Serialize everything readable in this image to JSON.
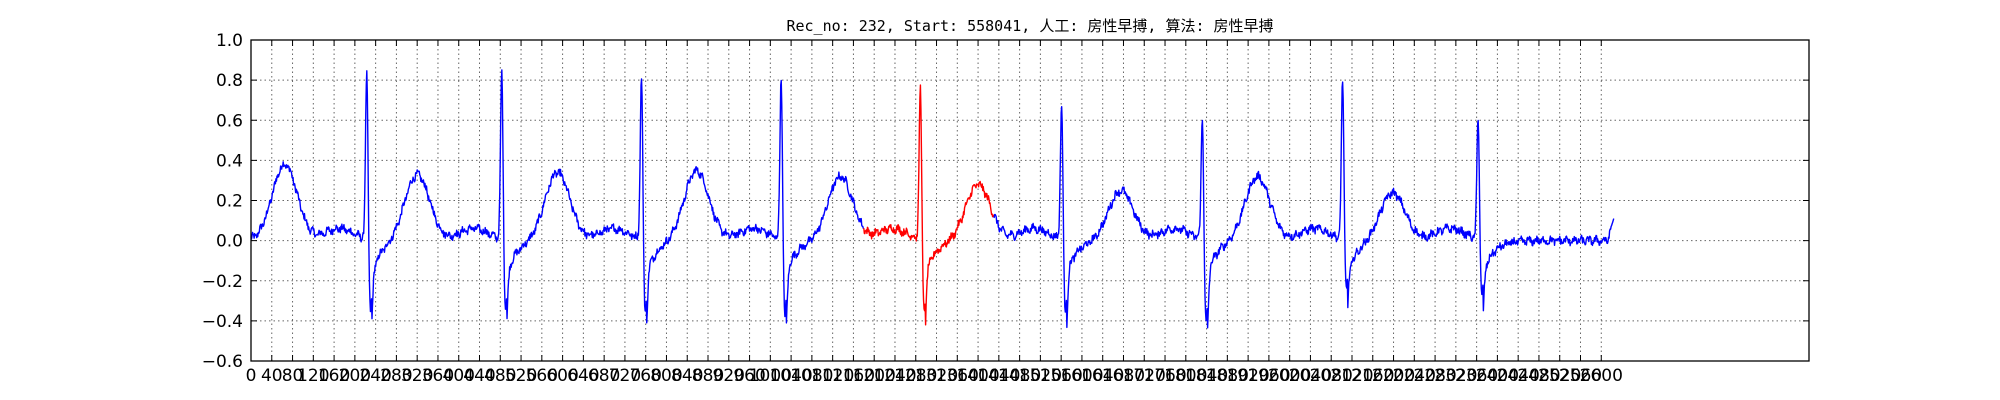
{
  "chart_data": {
    "type": "line",
    "title": "Rec_no: 232, Start: 558041, 人工: 房性早搏, 算法: 房性早搏",
    "xlabel": "",
    "ylabel": "",
    "xlim": [
      0,
      3000
    ],
    "ylim": [
      -0.6,
      1.0
    ],
    "grid": true,
    "grid_style": "dotted",
    "yticks": [
      -0.6,
      -0.4,
      -0.2,
      0.0,
      0.2,
      0.4,
      0.6,
      0.8,
      1.0
    ],
    "ytick_labels": [
      "−0.6",
      "−0.4",
      "−0.2",
      "0.0",
      "0.2",
      "0.4",
      "0.6",
      "0.8",
      "1.0"
    ],
    "xticks": [
      0,
      40,
      80,
      120,
      160,
      200,
      240,
      280,
      320,
      360,
      400,
      440,
      480,
      520,
      560,
      600,
      640,
      680,
      720,
      760,
      800,
      840,
      880,
      920,
      960,
      1000,
      1040,
      1080,
      1120,
      1160,
      1200,
      1240,
      1280,
      1320,
      1360,
      1400,
      1440,
      1480,
      1520,
      1560,
      1600,
      1640,
      1680,
      1720,
      1760,
      1800,
      1840,
      1880,
      1920,
      1960,
      2000,
      2040,
      2080,
      2120,
      2160,
      2200,
      2240,
      2280,
      2320,
      2360,
      2400,
      2440,
      2480,
      2520,
      2560,
      2600
    ],
    "colors": {
      "normal": "#0000ff",
      "highlight": "#ff0000",
      "grid": "#666666"
    },
    "beats": [
      {
        "r": 224,
        "peak": 0.86,
        "trough": -0.36,
        "t": 0.38,
        "tpos": 65
      },
      {
        "r": 484,
        "peak": 0.87,
        "trough": -0.35,
        "t": 0.33,
        "tpos": 320
      },
      {
        "r": 753,
        "peak": 0.85,
        "trough": -0.37,
        "t": 0.34,
        "tpos": 590
      },
      {
        "r": 1022,
        "peak": 0.85,
        "trough": -0.39,
        "t": 0.35,
        "tpos": 858
      },
      {
        "r": 1290,
        "peak": 0.79,
        "trough": -0.36,
        "t": 0.32,
        "tpos": 1135
      },
      {
        "r": 1562,
        "peak": 0.71,
        "trough": -0.37,
        "t": 0.28,
        "tpos": 1400
      },
      {
        "r": 1833,
        "peak": 0.65,
        "trough": -0.43,
        "t": 0.25,
        "tpos": 1675
      },
      {
        "r": 2103,
        "peak": 0.82,
        "trough": -0.25,
        "t": 0.32,
        "tpos": 1938
      },
      {
        "r": 2364,
        "peak": 0.64,
        "trough": -0.29,
        "t": 0.24,
        "tpos": 2198
      }
    ],
    "highlight_range": [
      1180,
      1430
    ],
    "series": [
      {
        "color": "#0000ff",
        "x_start": 0,
        "x_end": 2624,
        "end_value": 0.11
      }
    ]
  }
}
